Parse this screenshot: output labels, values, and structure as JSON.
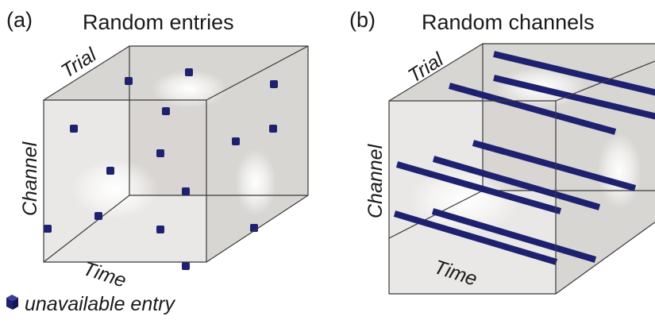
{
  "panels": [
    {
      "letter": "(a)",
      "title": "Random entries",
      "axes": {
        "trial": "Trial",
        "channel": "Channel",
        "time": "Time"
      }
    },
    {
      "letter": "(b)",
      "title": "Random channels",
      "axes": {
        "trial": "Trial",
        "channel": "Channel",
        "time": "Time"
      }
    }
  ],
  "legend": {
    "label": "unavailable entry",
    "icon": "navy-cube-icon"
  },
  "colors": {
    "cube_face": "#d8d6d2",
    "cube_edge": "#3a3a3a",
    "missing_entry": "#1d2170",
    "highlight": "#ffffff"
  }
}
